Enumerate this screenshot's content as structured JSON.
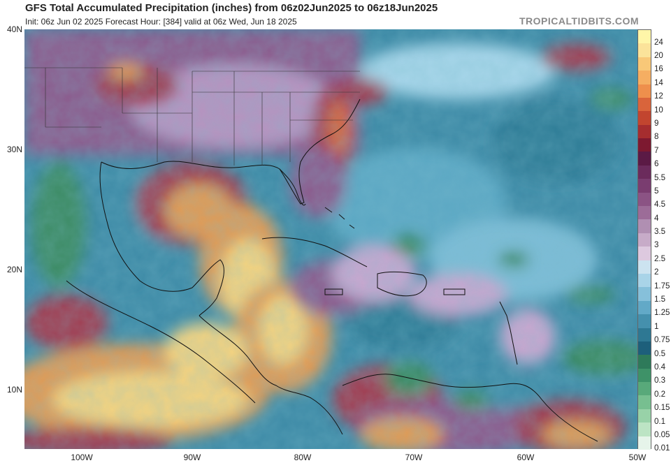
{
  "header": {
    "title": "GFS Total Accumulated Precipitation (inches) from 06z02Jun2025 to 06z18Jun2025",
    "subtitle": "Init: 06z Jun 02 2025   Forecast Hour: [384]   valid at 06z Wed, Jun 18 2025",
    "site": "TROPICALTIDBITS.COM"
  },
  "axes": {
    "lat_labels": [
      "40N",
      "30N",
      "20N",
      "10N"
    ],
    "lon_labels": [
      "100W",
      "90W",
      "80W",
      "70W",
      "60W",
      "50W"
    ]
  },
  "colorbar": {
    "labels": [
      "24",
      "20",
      "16",
      "14",
      "12",
      "10",
      "9",
      "8",
      "7",
      "6",
      "5.5",
      "5",
      "4.5",
      "4",
      "3.5",
      "3",
      "2.5",
      "2",
      "1.75",
      "1.5",
      "1.25",
      "1",
      "0.75",
      "0.5",
      "0.4",
      "0.3",
      "0.2",
      "0.15",
      "0.1",
      "0.05",
      "0.01"
    ],
    "colors": [
      "#fff6a8",
      "#fbe39a",
      "#f8c878",
      "#f5ae62",
      "#ee8f4c",
      "#d9643b",
      "#c2452f",
      "#a52d2f",
      "#7d1930",
      "#5b1a45",
      "#6b2b5c",
      "#7a3d70",
      "#8b5384",
      "#9c6c98",
      "#b08fb2",
      "#c7abc8",
      "#ddc9df",
      "#cce3f0",
      "#a9d4e8",
      "#86c0da",
      "#62a9c7",
      "#4590ad",
      "#2e7893",
      "#1d5f7b",
      "#2e7a5a",
      "#3e9268",
      "#58a97a",
      "#77bf90",
      "#98d2a8",
      "#bce4c4",
      "#e6f4ea"
    ]
  },
  "map_colors": {
    "ocean_base": "#3d8aa6",
    "land_base": "#8c5a8c",
    "heavy": "#e29a52",
    "very_heavy": "#f6d37e",
    "moderate": "#a23a4f",
    "light": "#c9a6cf",
    "dry_light": "#a7d6ea",
    "green": "#3b8a62",
    "coast": "#111111"
  }
}
